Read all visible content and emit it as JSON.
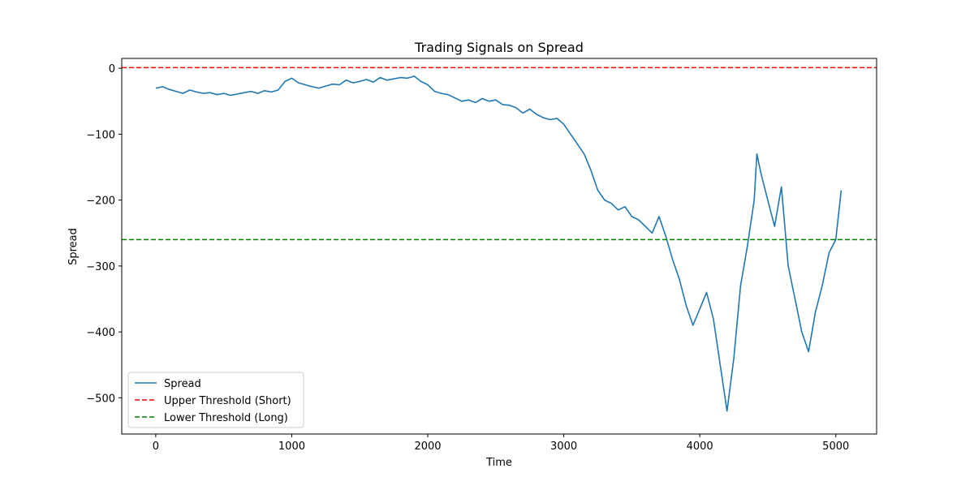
{
  "chart_data": {
    "type": "line",
    "title": "Trading Signals on Spread",
    "xlabel": "Time",
    "ylabel": "Spread",
    "xlim": [
      -250,
      5300
    ],
    "ylim": [
      -555,
      15
    ],
    "xticks": [
      0,
      1000,
      2000,
      3000,
      4000,
      5000
    ],
    "xtick_labels": [
      "0",
      "1000",
      "2000",
      "3000",
      "4000",
      "5000"
    ],
    "yticks": [
      0,
      -100,
      -200,
      -300,
      -400,
      -500
    ],
    "ytick_labels": [
      "0",
      "−100",
      "−200",
      "−300",
      "−400",
      "−500"
    ],
    "grid": false,
    "legend_position": "lower-left",
    "series": [
      {
        "name": "Spread",
        "style": "solid",
        "color": "#1f77b4",
        "x": [
          0,
          50,
          100,
          150,
          200,
          250,
          300,
          350,
          400,
          450,
          500,
          550,
          600,
          650,
          700,
          750,
          800,
          850,
          900,
          950,
          1000,
          1050,
          1100,
          1150,
          1200,
          1250,
          1300,
          1350,
          1400,
          1450,
          1500,
          1550,
          1600,
          1650,
          1700,
          1750,
          1800,
          1850,
          1900,
          1950,
          2000,
          2050,
          2100,
          2150,
          2200,
          2250,
          2300,
          2350,
          2400,
          2450,
          2500,
          2550,
          2600,
          2650,
          2700,
          2750,
          2800,
          2850,
          2900,
          2950,
          3000,
          3050,
          3100,
          3150,
          3200,
          3250,
          3300,
          3350,
          3400,
          3450,
          3500,
          3550,
          3600,
          3650,
          3700,
          3750,
          3800,
          3850,
          3900,
          3950,
          4000,
          4050,
          4100,
          4150,
          4200,
          4250,
          4300,
          4350,
          4400,
          4420,
          4450,
          4500,
          4550,
          4600,
          4650,
          4700,
          4750,
          4800,
          4850,
          4900,
          4950,
          5000,
          5040
        ],
        "y": [
          -30,
          -28,
          -32,
          -35,
          -38,
          -33,
          -36,
          -38,
          -37,
          -40,
          -38,
          -41,
          -39,
          -37,
          -35,
          -38,
          -34,
          -36,
          -33,
          -20,
          -15,
          -22,
          -25,
          -28,
          -30,
          -27,
          -24,
          -25,
          -18,
          -22,
          -20,
          -17,
          -21,
          -14,
          -18,
          -16,
          -14,
          -15,
          -12,
          -20,
          -25,
          -35,
          -38,
          -40,
          -45,
          -50,
          -48,
          -52,
          -46,
          -50,
          -48,
          -55,
          -56,
          -60,
          -68,
          -62,
          -70,
          -75,
          -78,
          -76,
          -85,
          -100,
          -115,
          -130,
          -155,
          -185,
          -200,
          -205,
          -215,
          -210,
          -225,
          -230,
          -240,
          -250,
          -225,
          -255,
          -290,
          -320,
          -360,
          -390,
          -365,
          -340,
          -380,
          -450,
          -520,
          -440,
          -330,
          -270,
          -200,
          -130,
          -160,
          -200,
          -240,
          -180,
          -300,
          -350,
          -400,
          -430,
          -370,
          -330,
          -280,
          -260,
          -185
        ]
      },
      {
        "name": "Upper Threshold (Short)",
        "style": "dashed",
        "color": "#ff0000",
        "y_constant": 1
      },
      {
        "name": "Lower Threshold (Long)",
        "style": "dashed",
        "color": "#008000",
        "y_constant": -260
      }
    ]
  }
}
